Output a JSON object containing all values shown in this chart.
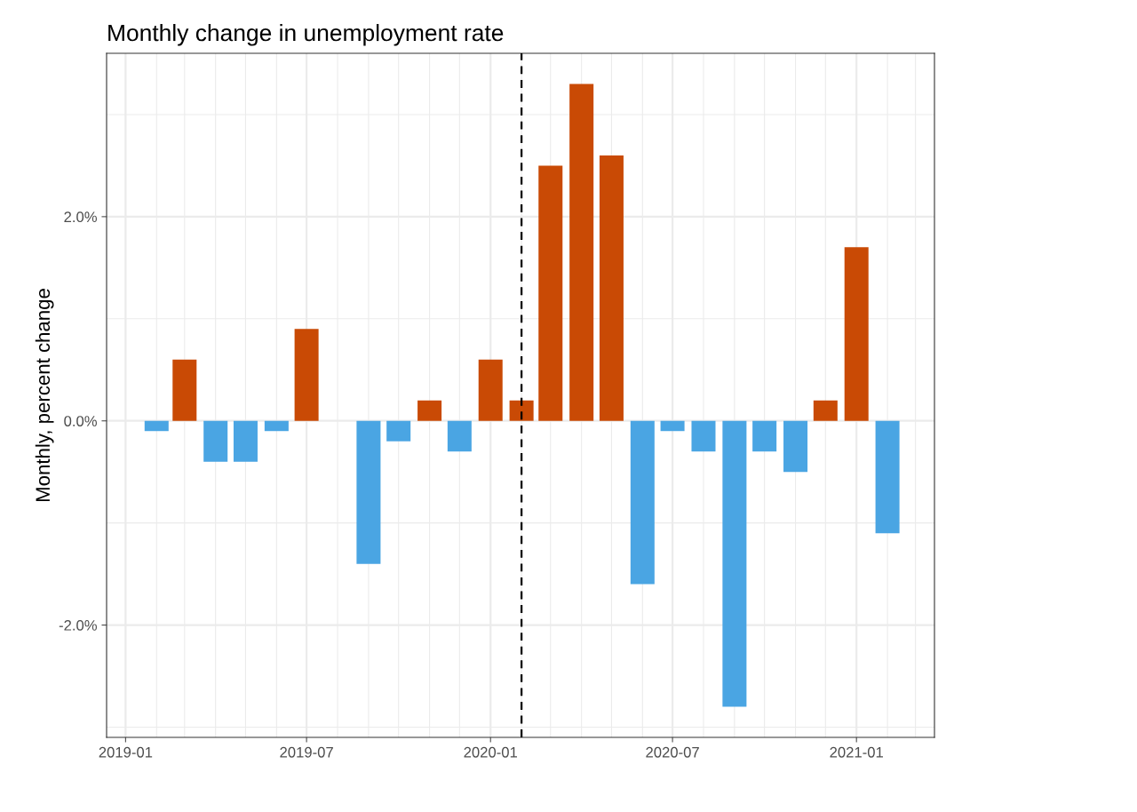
{
  "chart_data": {
    "type": "bar",
    "title": "Monthly change in unemployment rate",
    "ylabel": "Monthly, percent change",
    "x": [
      "2019-02",
      "2019-03",
      "2019-04",
      "2019-05",
      "2019-06",
      "2019-07",
      "2019-08",
      "2019-09",
      "2019-10",
      "2019-11",
      "2019-12",
      "2020-01",
      "2020-02",
      "2020-03",
      "2020-04",
      "2020-05",
      "2020-06",
      "2020-07",
      "2020-08",
      "2020-09",
      "2020-10",
      "2020-11",
      "2020-12",
      "2021-01",
      "2021-02"
    ],
    "values": [
      -0.1,
      0.6,
      -0.4,
      -0.4,
      -0.1,
      0.9,
      null,
      -1.4,
      -0.2,
      0.2,
      -0.3,
      0.6,
      0.2,
      2.5,
      3.3,
      2.6,
      -1.6,
      -0.1,
      -0.3,
      -2.8,
      -0.3,
      -0.5,
      0.2,
      1.7,
      -1.1
    ],
    "colors": [
      "#4aa5e3",
      "#c94a05",
      "#4aa5e3",
      "#4aa5e3",
      "#4aa5e3",
      "#c94a05",
      "#4aa5e3",
      "#4aa5e3",
      "#4aa5e3",
      "#c94a05",
      "#4aa5e3",
      "#c94a05",
      "#c94a05",
      "#c94a05",
      "#c94a05",
      "#c94a05",
      "#4aa5e3",
      "#4aa5e3",
      "#4aa5e3",
      "#4aa5e3",
      "#4aa5e3",
      "#4aa5e3",
      "#c94a05",
      "#c94a05",
      "#4aa5e3"
    ],
    "xlim": [
      "2018-12-13",
      "2021-03-20"
    ],
    "xticks": [
      {
        "value": "2019-01",
        "label": "2019-01"
      },
      {
        "value": "2019-07",
        "label": "2019-07"
      },
      {
        "value": "2020-01",
        "label": "2020-01"
      },
      {
        "value": "2020-07",
        "label": "2020-07"
      },
      {
        "value": "2021-01",
        "label": "2021-01"
      }
    ],
    "ylim": [
      -3.1,
      3.6
    ],
    "yticks": [
      {
        "value": -2,
        "label": "-2.0%"
      },
      {
        "value": 0,
        "label": "0.0%"
      },
      {
        "value": 2,
        "label": "2.0%"
      }
    ],
    "ref_lines": [
      {
        "axis": "x",
        "value": "2020-02",
        "color": "#000000",
        "line_style": "dashed"
      }
    ],
    "grid": true
  }
}
